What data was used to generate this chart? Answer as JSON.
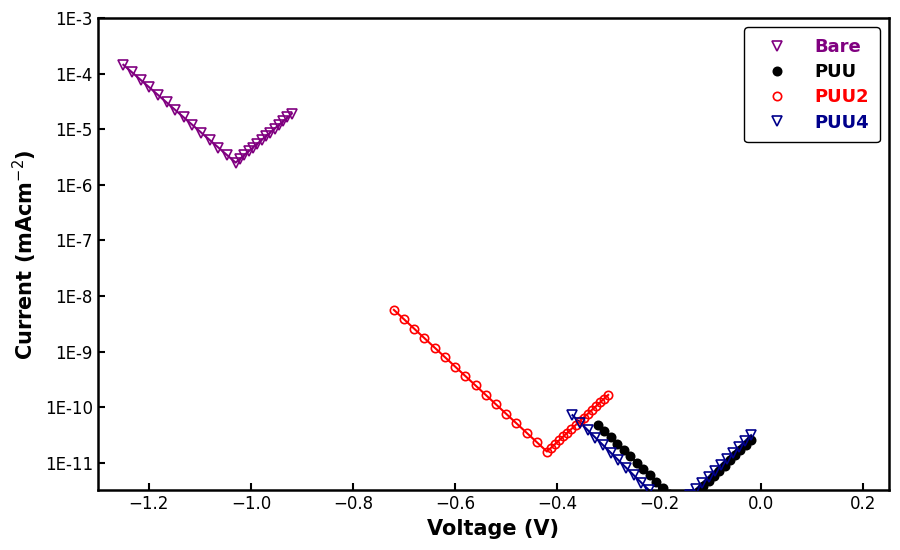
{
  "title": "",
  "xlabel": "Voltage (V)",
  "ylabel": "Current (mAcm$^{-2}$)",
  "xlim": [
    -1.3,
    0.25
  ],
  "ylim_log": [
    -11.5,
    -3
  ],
  "xticks": [
    -1.2,
    -1.0,
    -0.8,
    -0.6,
    -0.4,
    -0.2,
    0.0,
    0.2
  ],
  "background_color": "#ffffff",
  "series": [
    {
      "label": "Bare",
      "color": "#800080",
      "marker": "v",
      "markersize": 7,
      "markerfacecolor": "none",
      "linewidth": 1.5,
      "corr_potential": -1.03,
      "ba": 8.0,
      "bc": 8.0,
      "icorr_log": -5.6,
      "v_cat_far": -1.25,
      "v_an_far": -0.92,
      "n_line": 300,
      "n_markers": 14
    },
    {
      "label": "PUU",
      "color": "#000000",
      "marker": "o",
      "markersize": 6,
      "markerfacecolor": "#000000",
      "linewidth": 1.5,
      "corr_potential": -0.155,
      "ba": 9.0,
      "bc": 9.0,
      "icorr_log": -11.8,
      "v_cat_far": -0.32,
      "v_an_far": -0.02,
      "n_line": 300,
      "n_markers": 14
    },
    {
      "label": "PUU2",
      "color": "#ff0000",
      "marker": "o",
      "markersize": 6,
      "markerfacecolor": "none",
      "linewidth": 1.5,
      "corr_potential": -0.42,
      "ba": 8.5,
      "bc": 8.5,
      "icorr_log": -10.8,
      "v_cat_far": -0.72,
      "v_an_far": -0.3,
      "n_line": 300,
      "n_markers": 16
    },
    {
      "label": "PUU4",
      "color": "#00008B",
      "marker": "v",
      "markersize": 7,
      "markerfacecolor": "none",
      "linewidth": 1.5,
      "corr_potential": -0.175,
      "ba": 9.0,
      "bc": 9.0,
      "icorr_log": -11.9,
      "v_cat_far": -0.37,
      "v_an_far": -0.02,
      "n_line": 300,
      "n_markers": 14
    }
  ],
  "legend_fontsize": 13,
  "axis_label_fontsize": 15,
  "tick_fontsize": 12,
  "legend_labels_colors": [
    "#800080",
    "#000000",
    "#ff0000",
    "#00008B"
  ],
  "legend_bold": [
    false,
    false,
    true,
    true
  ]
}
